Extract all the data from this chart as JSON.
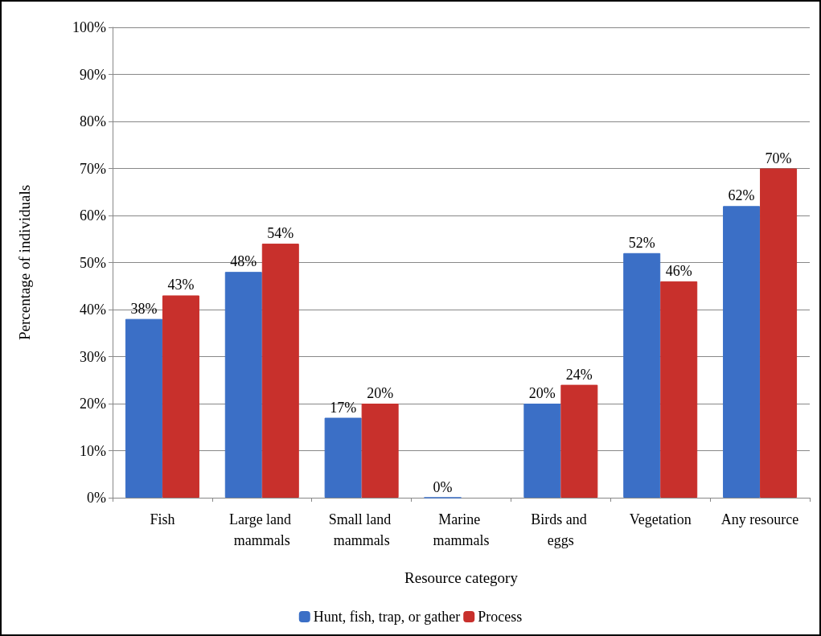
{
  "chart_data": {
    "type": "bar",
    "xlabel": "Resource category",
    "ylabel": "Percentage of individuals",
    "categories": [
      "Fish",
      "Large land mammals",
      "Small land mammals",
      "Marine mammals",
      "Birds and eggs",
      "Vegetation",
      "Any resource"
    ],
    "series": [
      {
        "name": "Hunt, fish, trap, or gather",
        "color": "#3b6fc6",
        "values": [
          38,
          48,
          17,
          0,
          20,
          52,
          62
        ],
        "value_labels": [
          "38%",
          "48%",
          "17%",
          "0%",
          "20%",
          "52%",
          "62%"
        ]
      },
      {
        "name": "Process",
        "color": "#c8302c",
        "values": [
          43,
          54,
          20,
          null,
          24,
          46,
          70
        ],
        "value_labels": [
          "43%",
          "54%",
          "20%",
          null,
          "24%",
          "46%",
          "70%"
        ]
      }
    ],
    "ylim": [
      0,
      100
    ],
    "yticks": [
      {
        "value": 0,
        "label": "0%"
      },
      {
        "value": 10,
        "label": "10%"
      },
      {
        "value": 20,
        "label": "20%"
      },
      {
        "value": 30,
        "label": "30%"
      },
      {
        "value": 40,
        "label": "40%"
      },
      {
        "value": 50,
        "label": "50%"
      },
      {
        "value": 60,
        "label": "60%"
      },
      {
        "value": 70,
        "label": "70%"
      },
      {
        "value": 80,
        "label": "80%"
      },
      {
        "value": 90,
        "label": "90%"
      },
      {
        "value": 100,
        "label": "100%"
      }
    ],
    "grid": "y",
    "legend": "bottom"
  }
}
